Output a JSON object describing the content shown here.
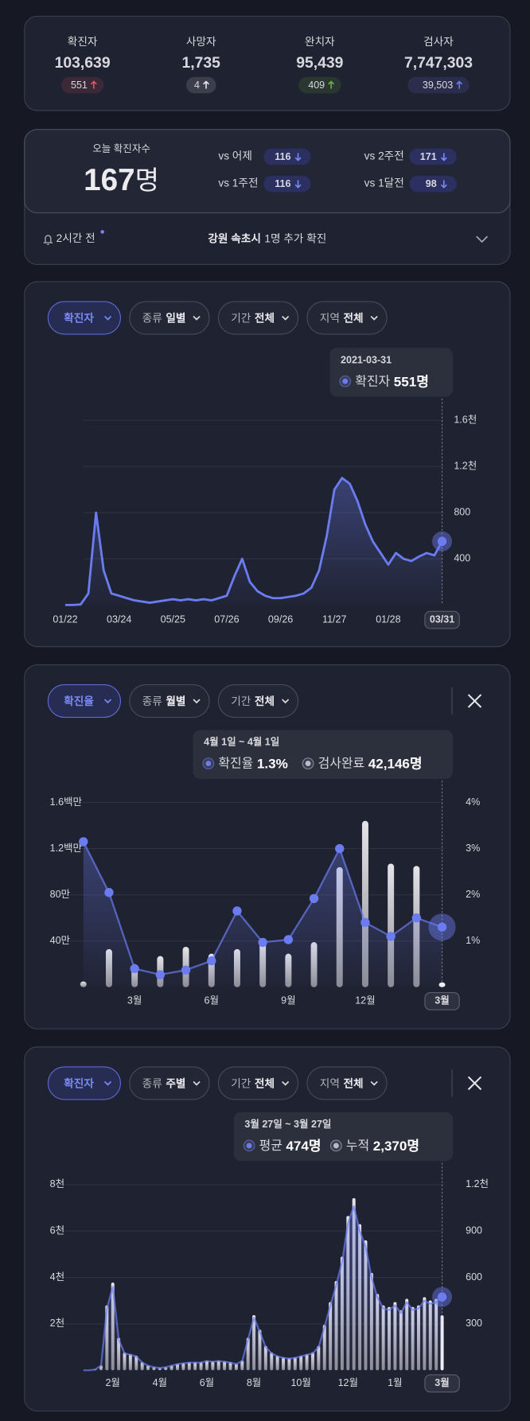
{
  "stats": [
    {
      "label": "확진자",
      "value": "103,639",
      "delta": "551",
      "color": "#e0566e"
    },
    {
      "label": "사망자",
      "value": "1,735",
      "delta": "4",
      "color": "#e6e6ea"
    },
    {
      "label": "완치자",
      "value": "95,439",
      "delta": "409",
      "color": "#6cb33a"
    },
    {
      "label": "검사자",
      "value": "7,747,303",
      "delta": "39,503",
      "color": "#6b7cf0"
    }
  ],
  "today": {
    "label": "오늘 확진자수",
    "value": "167",
    "unit": "명",
    "comparisons": [
      {
        "label": "vs 어제",
        "value": "116"
      },
      {
        "label": "vs 2주전",
        "value": "171"
      },
      {
        "label": "vs 1주전",
        "value": "116"
      },
      {
        "label": "vs 1달전",
        "value": "98"
      }
    ]
  },
  "notice": {
    "time": "2시간 전",
    "place": "강원 속초시",
    "text": "1명 추가 확진"
  },
  "charts": [
    {
      "type": "line",
      "filters": [
        {
          "value": "확진자"
        },
        {
          "key": "종류",
          "value": "일별"
        },
        {
          "key": "기간",
          "value": "전체"
        },
        {
          "key": "지역",
          "value": "전체"
        }
      ],
      "tooltip": {
        "title": "2021-03-31",
        "values": [
          "551명"
        ]
      },
      "categories": [
        "01/22",
        null,
        null,
        null,
        null,
        null,
        null,
        "03/24",
        null,
        null,
        null,
        null,
        null,
        null,
        "05/25",
        null,
        null,
        null,
        null,
        null,
        null,
        "07/26",
        null,
        null,
        null,
        null,
        null,
        null,
        "09/26",
        null,
        null,
        null,
        null,
        null,
        null,
        "11/27",
        null,
        null,
        null,
        null,
        null,
        null,
        "01/28",
        null,
        null,
        null,
        null,
        null,
        null,
        "03/31"
      ],
      "series": [
        {
          "name": "확진자",
          "color": "#6b7cf0",
          "values": [
            0,
            0,
            5,
            100,
            800,
            300,
            100,
            80,
            60,
            40,
            30,
            20,
            30,
            40,
            50,
            40,
            50,
            40,
            50,
            40,
            60,
            80,
            250,
            400,
            200,
            120,
            80,
            60,
            60,
            70,
            80,
            100,
            150,
            300,
            600,
            1000,
            1100,
            1050,
            900,
            700,
            550,
            450,
            350,
            450,
            400,
            380,
            420,
            450,
            430,
            551
          ]
        }
      ],
      "ylim": [
        0,
        1600
      ],
      "yticks": [
        400,
        800,
        {
          "value": 1200,
          "label": "1.2천"
        },
        {
          "value": 1600,
          "label": "1.6천"
        }
      ],
      "grid": true
    },
    {
      "type": "combo",
      "filters": [
        {
          "value": "확진율"
        },
        {
          "key": "종류",
          "value": "월별"
        },
        {
          "key": "기간",
          "value": "전체"
        }
      ],
      "tooltip": {
        "title": "4월 1일 ~ 4월 1일",
        "values": [
          "1.3%",
          "42,146명"
        ]
      },
      "categories": [
        null,
        null,
        "3월",
        null,
        null,
        "6월",
        null,
        null,
        "9월",
        null,
        null,
        "12월",
        null,
        null,
        "3월"
      ],
      "series": [
        {
          "name": "확진율",
          "type": "line",
          "axis": "y2",
          "color": "#6b7cf0",
          "values": [
            3.15,
            2.05,
            0.4,
            0.27,
            0.37,
            0.57,
            1.65,
            0.97,
            1.03,
            1.92,
            3.0,
            1.4,
            1.1,
            1.5,
            1.3
          ]
        },
        {
          "name": "검사완료",
          "type": "bar",
          "color": "#c9c9cf",
          "values": [
            50000,
            330000,
            200000,
            270000,
            350000,
            290000,
            330000,
            390000,
            290000,
            390000,
            1040000,
            1440000,
            1070000,
            1050000,
            42146
          ]
        }
      ],
      "ylim": [
        0,
        1600000
      ],
      "yticks": [
        {
          "value": 400000,
          "label": "40만"
        },
        {
          "value": 800000,
          "label": "80만"
        },
        {
          "value": 1200000,
          "label": "1.2백만"
        },
        {
          "value": 1600000,
          "label": "1.6백만"
        }
      ],
      "y2lim": [
        0,
        4
      ],
      "y2ticks": [
        {
          "value": 1,
          "label": "1%"
        },
        {
          "value": 2,
          "label": "2%"
        },
        {
          "value": 3,
          "label": "3%"
        },
        {
          "value": 4,
          "label": "4%"
        }
      ],
      "grid": true
    },
    {
      "type": "combo",
      "filters": [
        {
          "value": "확진자"
        },
        {
          "key": "종류",
          "value": "주별"
        },
        {
          "key": "기간",
          "value": "전체"
        },
        {
          "key": "지역",
          "value": "전체"
        }
      ],
      "tooltip": {
        "title": "3월 27일 ~ 3월 27일",
        "values": [
          "474명",
          "2,370명"
        ]
      },
      "categories": [
        null,
        null,
        null,
        null,
        null,
        "2월",
        null,
        null,
        null,
        null,
        null,
        null,
        null,
        "4월",
        null,
        null,
        null,
        null,
        null,
        null,
        null,
        "6월",
        null,
        null,
        null,
        null,
        null,
        null,
        null,
        "8월",
        null,
        null,
        null,
        null,
        null,
        null,
        null,
        "10월",
        null,
        null,
        null,
        null,
        null,
        null,
        null,
        "12월",
        null,
        null,
        null,
        null,
        null,
        null,
        null,
        "1월",
        null,
        null,
        null,
        null,
        null,
        null,
        null,
        "3월"
      ],
      "series": [
        {
          "name": "평균",
          "type": "line",
          "axis": "y2",
          "color": "#6b7cf0",
          "values": [
            0,
            0,
            5,
            30,
            400,
            540,
            200,
            110,
            100,
            90,
            50,
            30,
            20,
            15,
            20,
            30,
            40,
            45,
            50,
            50,
            50,
            60,
            55,
            60,
            55,
            50,
            40,
            60,
            200,
            340,
            250,
            150,
            110,
            90,
            80,
            75,
            80,
            90,
            100,
            110,
            150,
            280,
            420,
            550,
            700,
            950,
            1060,
            900,
            800,
            600,
            470,
            400,
            390,
            420,
            370,
            440,
            390,
            400,
            450,
            430,
            440,
            474
          ]
        },
        {
          "name": "누적",
          "type": "bar",
          "color": "#c9c9cf",
          "values": [
            0,
            0,
            35,
            210,
            2800,
            3780,
            1400,
            770,
            700,
            630,
            350,
            210,
            140,
            105,
            140,
            210,
            280,
            315,
            350,
            350,
            350,
            420,
            385,
            420,
            385,
            350,
            280,
            420,
            1400,
            2380,
            1750,
            1050,
            770,
            630,
            560,
            525,
            560,
            630,
            700,
            770,
            1050,
            1960,
            2940,
            3850,
            4900,
            6650,
            7420,
            6300,
            5600,
            4200,
            3290,
            2800,
            2730,
            2940,
            2590,
            3080,
            2730,
            2800,
            3150,
            3010,
            3080,
            2370
          ]
        }
      ],
      "ylim": [
        0,
        8000
      ],
      "yticks": [
        {
          "value": 2000,
          "label": "2천"
        },
        {
          "value": 4000,
          "label": "4천"
        },
        {
          "value": 6000,
          "label": "6천"
        },
        {
          "value": 8000,
          "label": "8천"
        }
      ],
      "y2lim": [
        0,
        1200
      ],
      "y2ticks": [
        300,
        600,
        900,
        {
          "value": 1200,
          "label": "1.2천"
        }
      ],
      "grid": true
    }
  ]
}
